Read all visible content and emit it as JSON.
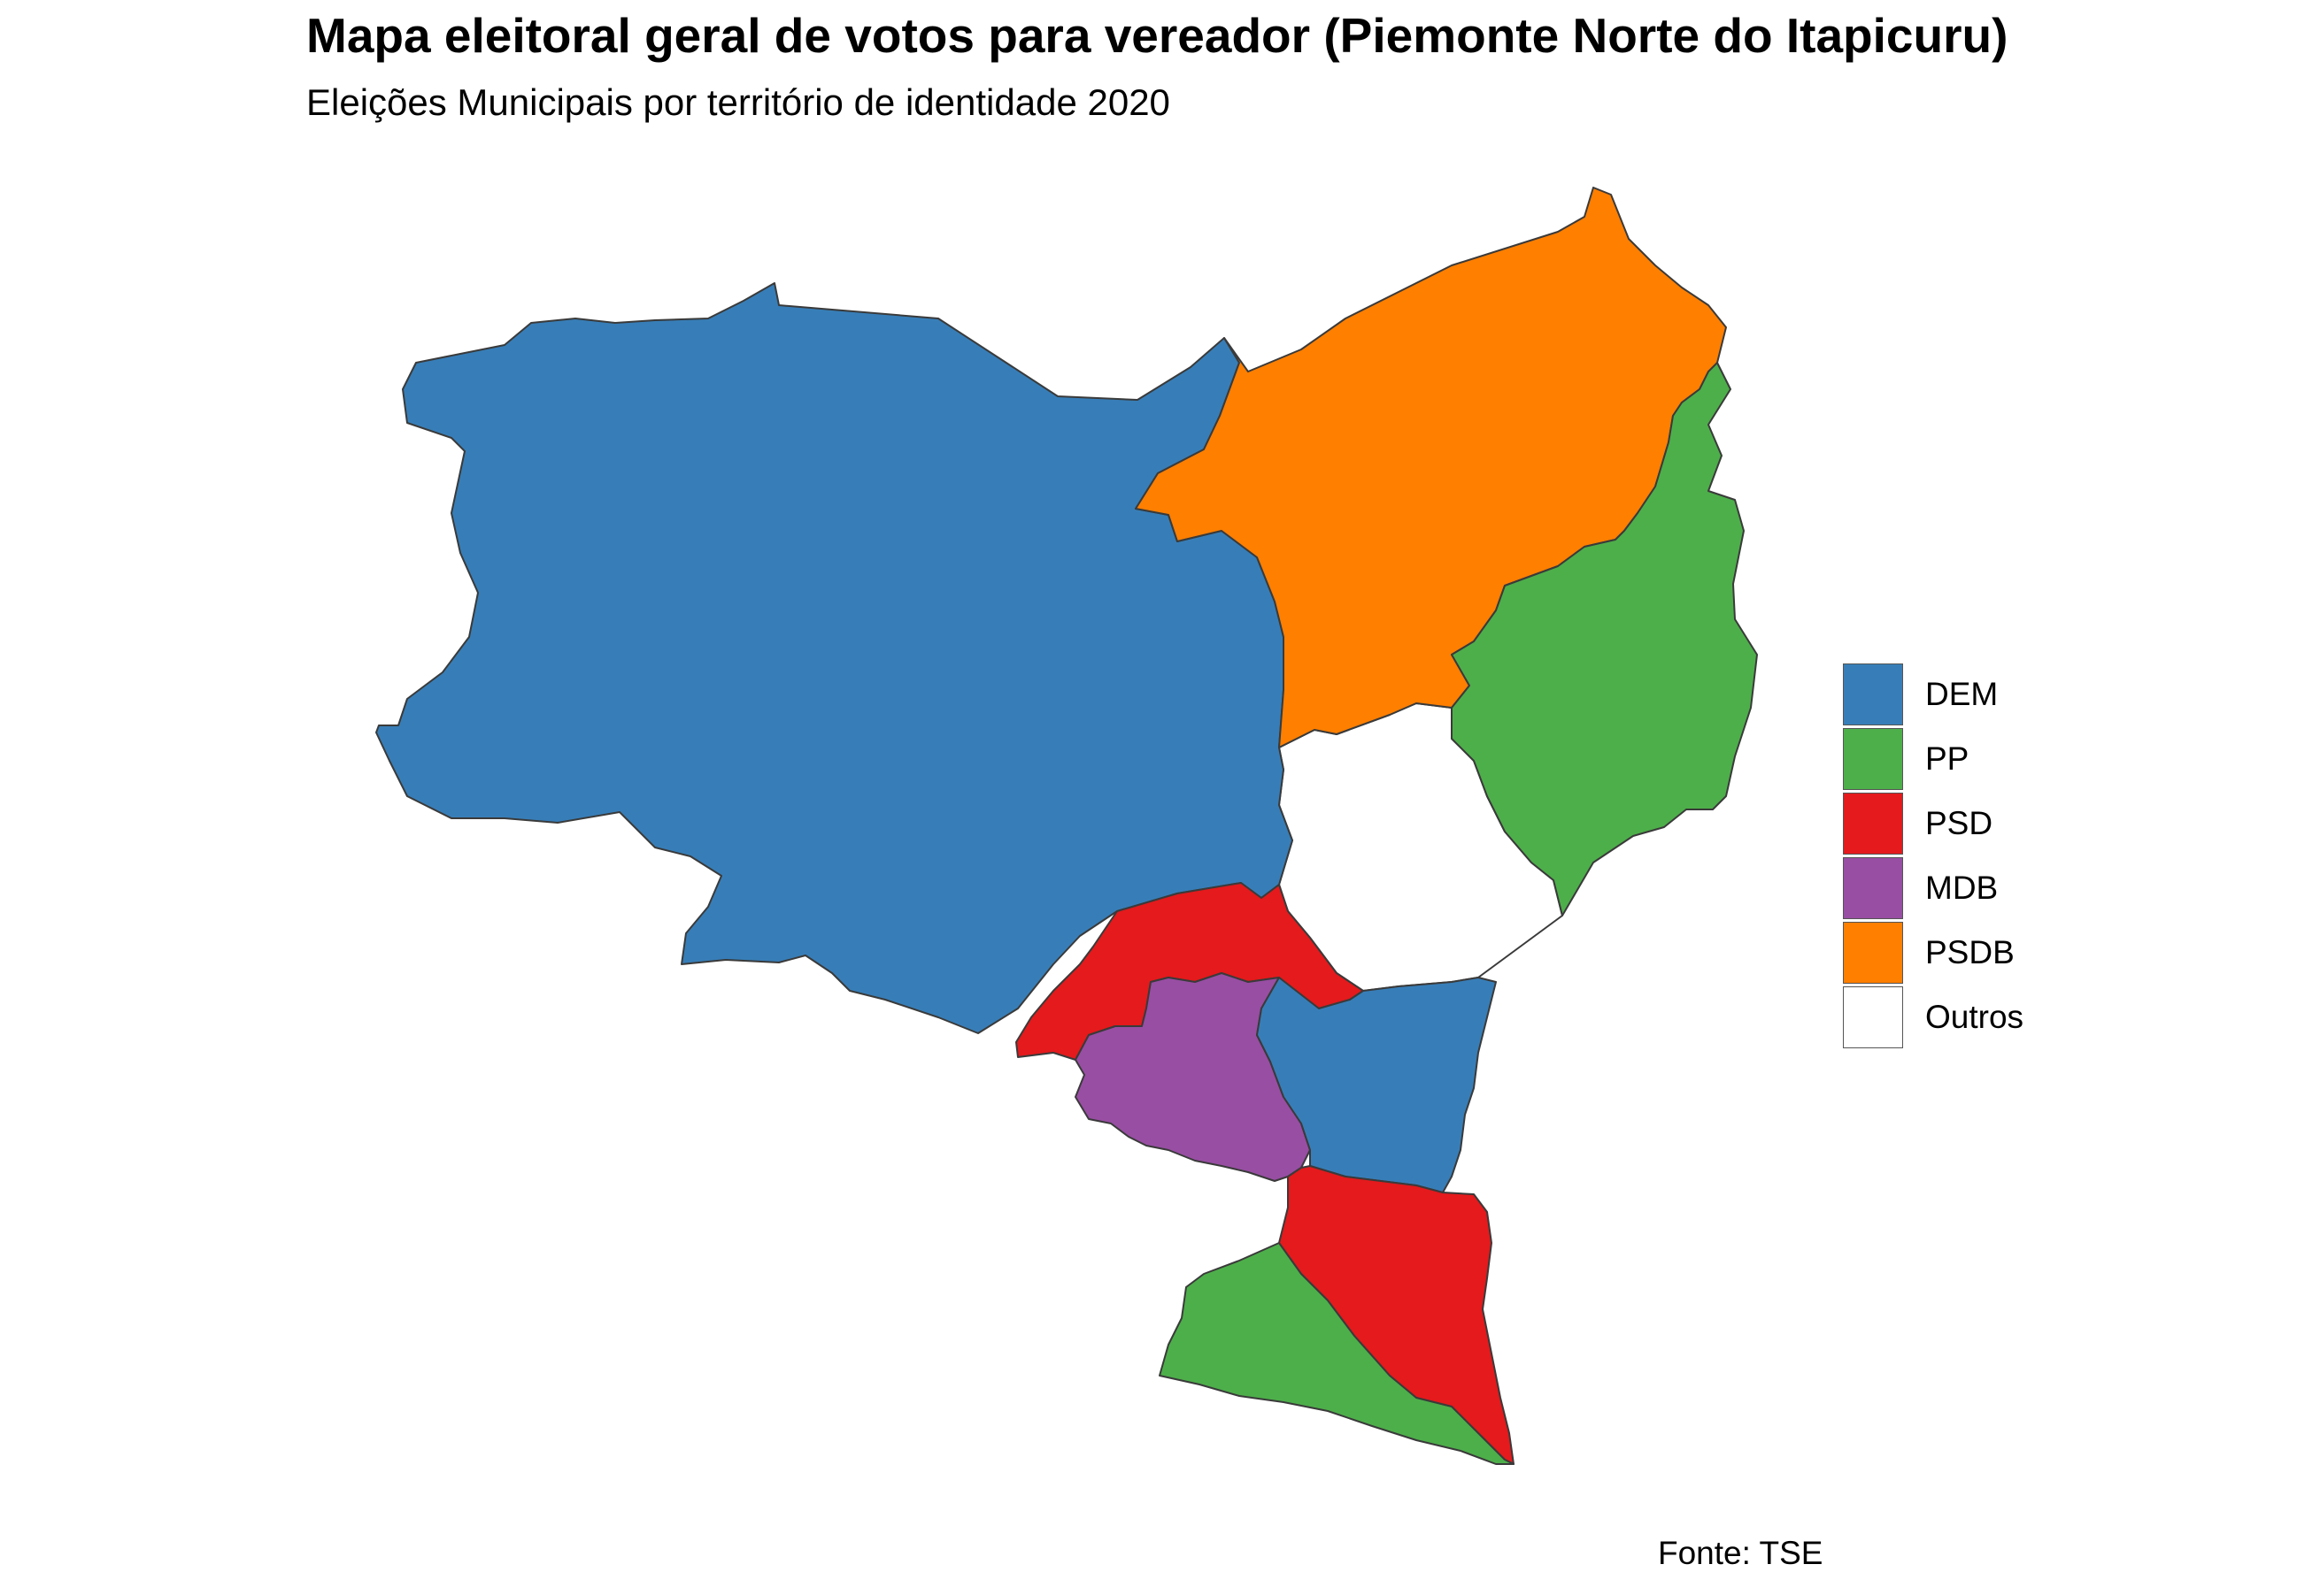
{
  "title": "Mapa eleitoral geral de votos para vereador (Piemonte Norte do Itapicuru)",
  "subtitle": "Eleições Municipais por território de identidade 2020",
  "caption": "Fonte: TSE",
  "legend": [
    {
      "label": "DEM",
      "color": "#377EB8"
    },
    {
      "label": "PP",
      "color": "#4DAF4A"
    },
    {
      "label": "PSD",
      "color": "#E41A1C"
    },
    {
      "label": "MDB",
      "color": "#984EA3"
    },
    {
      "label": "PSDB",
      "color": "#FF7F00"
    },
    {
      "label": "Outros",
      "color": "#FFFFFF"
    }
  ],
  "map": {
    "regions": [
      {
        "id": "west-large",
        "party": "DEM"
      },
      {
        "id": "northeast",
        "party": "PSDB"
      },
      {
        "id": "east",
        "party": "PP"
      },
      {
        "id": "center-white",
        "party": "Outros"
      },
      {
        "id": "south-center-red",
        "party": "PSD"
      },
      {
        "id": "south-purple",
        "party": "MDB"
      },
      {
        "id": "south-center-blue",
        "party": "DEM"
      },
      {
        "id": "south-red",
        "party": "PSD"
      },
      {
        "id": "south-green",
        "party": "PP"
      }
    ]
  }
}
